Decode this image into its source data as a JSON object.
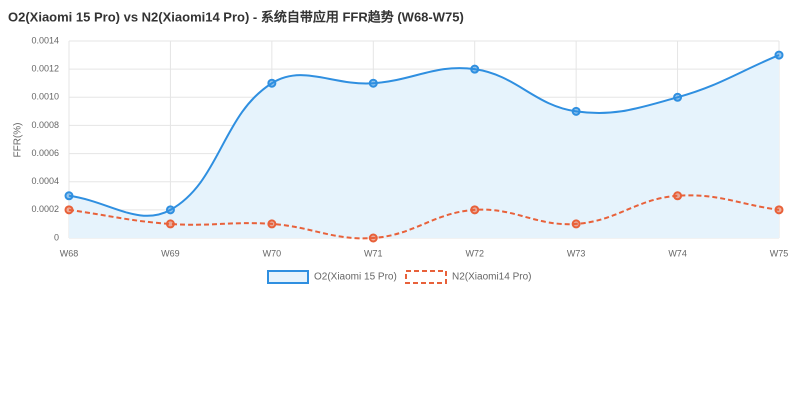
{
  "chart_data": {
    "type": "line",
    "title": "O2(Xiaomi 15 Pro) vs N2(Xiaomi14 Pro) - 系统自带应用 FFR趋势 (W68-W75)",
    "y_label": "FFR(%)",
    "categories": [
      "W68",
      "W69",
      "W70",
      "W71",
      "W72",
      "W73",
      "W74",
      "W75"
    ],
    "series": [
      {
        "name": "O2(Xiaomi 15 Pro)",
        "color": "#2f8fe0",
        "fill": "#e6f3fc",
        "dashed": false,
        "values": [
          0.0003,
          0.0002,
          0.0011,
          0.0011,
          0.0012,
          0.0009,
          0.001,
          0.0013
        ]
      },
      {
        "name": "N2(Xiaomi14 Pro)",
        "color": "#e8613a",
        "dashed": true,
        "values": [
          0.0002,
          0.0001,
          0.0001,
          0,
          0.0002,
          0.0001,
          0.0003,
          0.0002
        ]
      }
    ],
    "ylim": [
      0,
      0.0014
    ],
    "yticks": [
      0,
      0.0002,
      0.0004,
      0.0006,
      0.0008,
      {
        "value": 0.001,
        "label": "0.0010"
      },
      0.0012,
      0.0014
    ],
    "grid": true
  }
}
